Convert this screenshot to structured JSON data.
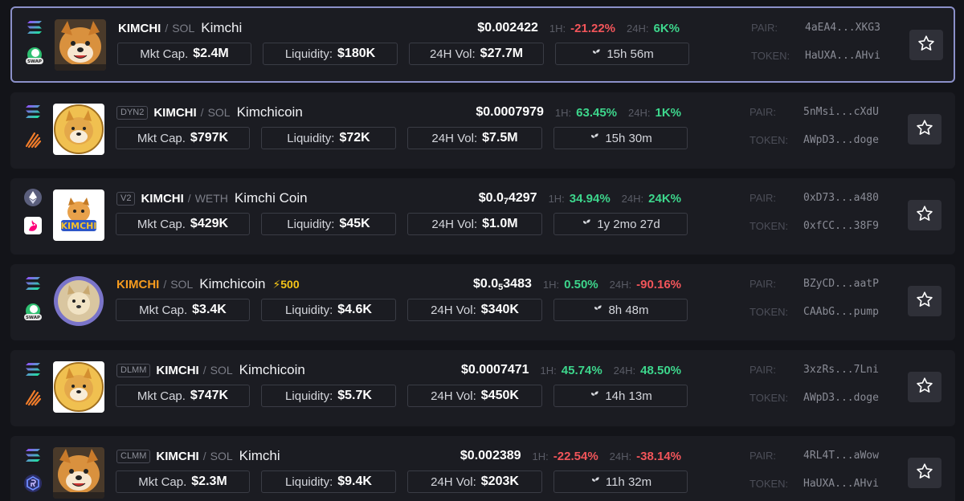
{
  "labels": {
    "mkt_cap": "Mkt Cap.",
    "liquidity": "Liquidity:",
    "vol": "24H Vol:",
    "h1": "1H:",
    "h24": "24H:",
    "pair": "PAIR:",
    "token": "TOKEN:",
    "slash": "/"
  },
  "colors": {
    "positive": "#3dd68c",
    "negative": "#f2555a",
    "selected_border": "#8b90c9",
    "boost": "#f5c518"
  },
  "pairs": [
    {
      "chain_icon": "solana-icon",
      "dex_icon": "swap-icon",
      "dex_badge": "",
      "symbol": "KIMCHI",
      "quote": "SOL",
      "name": "Kimchi",
      "boost": "",
      "price_main": "$0.002422",
      "price_zeros": "",
      "price_tail": "",
      "change_1h": "-21.22%",
      "change_1h_dir": "negative",
      "change_24h": "6K%",
      "change_24h_dir": "positive",
      "mkt_cap": "$2.4M",
      "liquidity": "$180K",
      "vol_24h": "$27.7M",
      "age": "15h 56m",
      "pair_addr": "4aEA4...XKG3",
      "token_addr": "HaUXA...AHvi",
      "selected": true
    },
    {
      "chain_icon": "solana-icon",
      "dex_icon": "meteora-icon",
      "dex_badge": "DYN2",
      "symbol": "KIMCHI",
      "quote": "SOL",
      "name": "Kimchicoin",
      "boost": "",
      "price_main": "$0.0007979",
      "price_zeros": "",
      "price_tail": "",
      "change_1h": "63.45%",
      "change_1h_dir": "positive",
      "change_24h": "1K%",
      "change_24h_dir": "positive",
      "mkt_cap": "$797K",
      "liquidity": "$72K",
      "vol_24h": "$7.5M",
      "age": "15h 30m",
      "pair_addr": "5nMsi...cXdU",
      "token_addr": "AWpD3...doge",
      "selected": false
    },
    {
      "chain_icon": "ethereum-icon",
      "dex_icon": "uniswap-icon",
      "dex_badge": "V2",
      "symbol": "KIMCHI",
      "quote": "WETH",
      "name": "Kimchi Coin",
      "boost": "",
      "price_main": "$0.0",
      "price_zeros": "7",
      "price_tail": "4297",
      "change_1h": "34.94%",
      "change_1h_dir": "positive",
      "change_24h": "24K%",
      "change_24h_dir": "positive",
      "mkt_cap": "$429K",
      "liquidity": "$45K",
      "vol_24h": "$1.0M",
      "age": "1y 2mo 27d",
      "pair_addr": "0xD73...a480",
      "token_addr": "0xfCC...38F9",
      "selected": false
    },
    {
      "chain_icon": "solana-icon",
      "dex_icon": "swap-icon",
      "dex_badge": "",
      "symbol": "KIMCHI",
      "quote": "SOL",
      "name": "Kimchicoin",
      "boost": "⚡500",
      "price_main": "$0.0",
      "price_zeros": "5",
      "price_tail": "3483",
      "change_1h": "0.50%",
      "change_1h_dir": "positive",
      "change_24h": "-90.16%",
      "change_24h_dir": "negative",
      "mkt_cap": "$3.4K",
      "liquidity": "$4.6K",
      "vol_24h": "$340K",
      "age": "8h 48m",
      "pair_addr": "BZyCD...aatP",
      "token_addr": "CAAbG...pump",
      "selected": false
    },
    {
      "chain_icon": "solana-icon",
      "dex_icon": "meteora-icon",
      "dex_badge": "DLMM",
      "symbol": "KIMCHI",
      "quote": "SOL",
      "name": "Kimchicoin",
      "boost": "",
      "price_main": "$0.0007471",
      "price_zeros": "",
      "price_tail": "",
      "change_1h": "45.74%",
      "change_1h_dir": "positive",
      "change_24h": "48.50%",
      "change_24h_dir": "positive",
      "mkt_cap": "$747K",
      "liquidity": "$5.7K",
      "vol_24h": "$450K",
      "age": "14h 13m",
      "pair_addr": "3xzRs...7Lni",
      "token_addr": "AWpD3...doge",
      "selected": false
    },
    {
      "chain_icon": "solana-icon",
      "dex_icon": "raydium-icon",
      "dex_badge": "CLMM",
      "symbol": "KIMCHI",
      "quote": "SOL",
      "name": "Kimchi",
      "boost": "",
      "price_main": "$0.002389",
      "price_zeros": "",
      "price_tail": "",
      "change_1h": "-22.54%",
      "change_1h_dir": "negative",
      "change_24h": "-38.14%",
      "change_24h_dir": "negative",
      "mkt_cap": "$2.3M",
      "liquidity": "$9.4K",
      "vol_24h": "$203K",
      "age": "11h 32m",
      "pair_addr": "4RL4T...aWow",
      "token_addr": "HaUXA...AHvi",
      "selected": false
    }
  ]
}
